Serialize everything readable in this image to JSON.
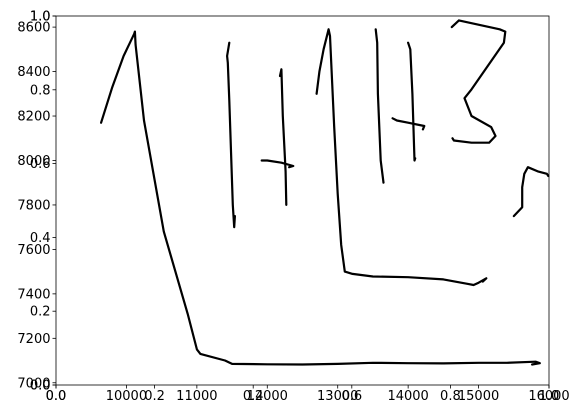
{
  "chart_data": [
    {
      "type": "line",
      "title": "",
      "xlabel": "",
      "ylabel": "",
      "xlim": [
        9000,
        16000
      ],
      "ylim": [
        6990,
        8650
      ],
      "xticks": [
        {
          "value": 10000,
          "label": "10000"
        },
        {
          "value": 11000,
          "label": "11000"
        },
        {
          "value": 12000,
          "label": "12000"
        },
        {
          "value": 13000,
          "label": "13000"
        },
        {
          "value": 14000,
          "label": "14000"
        },
        {
          "value": 15000,
          "label": "15000"
        },
        {
          "value": 16000,
          "label": "16000"
        }
      ],
      "yticks": [
        {
          "value": 7000,
          "label": "7000"
        },
        {
          "value": 7200,
          "label": "7200"
        },
        {
          "value": 7400,
          "label": "7400"
        },
        {
          "value": 7600,
          "label": "7600"
        },
        {
          "value": 7800,
          "label": "7800"
        },
        {
          "value": 8000,
          "label": "8000"
        },
        {
          "value": 8200,
          "label": "8200"
        },
        {
          "value": 8400,
          "label": "8400"
        },
        {
          "value": 8600,
          "label": "8600"
        }
      ],
      "grid": false,
      "line_color": "#000000",
      "series": [
        {
          "points": [
            [
              9640,
              8170
            ],
            [
              9800,
              8330
            ],
            [
              9960,
              8470
            ],
            [
              10110,
              8570
            ],
            [
              10120,
              8580
            ],
            [
              10130,
              8520
            ],
            [
              10250,
              8180
            ],
            [
              10530,
              7680
            ],
            [
              10870,
              7310
            ],
            [
              11000,
              7150
            ],
            [
              11050,
              7130
            ],
            [
              11400,
              7100
            ],
            [
              11500,
              7085
            ],
            [
              12000,
              7083
            ],
            [
              12500,
              7082
            ],
            [
              13000,
              7085
            ],
            [
              13500,
              7090
            ],
            [
              14000,
              7088
            ],
            [
              14500,
              7087
            ],
            [
              15000,
              7090
            ],
            [
              15400,
              7090
            ],
            [
              15810,
              7095
            ],
            [
              15870,
              7088
            ],
            [
              15760,
              7082
            ]
          ]
        },
        {
          "points": [
            [
              11460,
              8530
            ],
            [
              11430,
              8470
            ],
            [
              11440,
              8440
            ],
            [
              11460,
              8270
            ],
            [
              11510,
              7800
            ],
            [
              11530,
              7700
            ],
            [
              11540,
              7750
            ]
          ]
        },
        {
          "points": [
            [
              12180,
              8380
            ],
            [
              12200,
              8410
            ],
            [
              12220,
              8200
            ],
            [
              12260,
              7950
            ],
            [
              12270,
              7800
            ]
          ]
        },
        {
          "points": [
            [
              11920,
              8000
            ],
            [
              12000,
              8000
            ],
            [
              12200,
              7990
            ],
            [
              12370,
              7975
            ],
            [
              12310,
              7970
            ]
          ]
        },
        {
          "points": [
            [
              12700,
              8300
            ],
            [
              12740,
              8400
            ],
            [
              12800,
              8500
            ],
            [
              12870,
              8590
            ],
            [
              12890,
              8560
            ],
            [
              12950,
              8150
            ],
            [
              13000,
              7850
            ],
            [
              13050,
              7620
            ],
            [
              13100,
              7500
            ],
            [
              13210,
              7490
            ],
            [
              13500,
              7478
            ],
            [
              14000,
              7475
            ],
            [
              14500,
              7465
            ],
            [
              14850,
              7445
            ],
            [
              14930,
              7440
            ],
            [
              15000,
              7450
            ],
            [
              15110,
              7470
            ],
            [
              15060,
              7455
            ]
          ]
        },
        {
          "points": [
            [
              13540,
              8590
            ],
            [
              13560,
              8530
            ],
            [
              13570,
              8300
            ],
            [
              13610,
              8000
            ],
            [
              13650,
              7900
            ]
          ]
        },
        {
          "points": [
            [
              14000,
              8530
            ],
            [
              14030,
              8500
            ],
            [
              14060,
              8300
            ],
            [
              14090,
              8000
            ],
            [
              14100,
              8010
            ]
          ]
        },
        {
          "points": [
            [
              13780,
              8190
            ],
            [
              13840,
              8180
            ],
            [
              14000,
              8170
            ],
            [
              14230,
              8155
            ],
            [
              14210,
              8140
            ]
          ]
        },
        {
          "points": [
            [
              14620,
              8600
            ],
            [
              14720,
              8630
            ],
            [
              15300,
              8590
            ],
            [
              15380,
              8580
            ],
            [
              15360,
              8530
            ],
            [
              14900,
              8320
            ],
            [
              14800,
              8280
            ],
            [
              14900,
              8200
            ],
            [
              15180,
              8150
            ],
            [
              15240,
              8110
            ],
            [
              15150,
              8080
            ],
            [
              14900,
              8080
            ],
            [
              14650,
              8090
            ],
            [
              14630,
              8100
            ]
          ]
        },
        {
          "points": [
            [
              15500,
              7750
            ],
            [
              15620,
              7790
            ],
            [
              15620,
              7880
            ],
            [
              15650,
              7940
            ],
            [
              15700,
              7970
            ],
            [
              15850,
              7950
            ],
            [
              15970,
              7940
            ],
            [
              15990,
              7930
            ]
          ]
        }
      ]
    },
    {
      "type": "line",
      "xlim": [
        0,
        1
      ],
      "ylim": [
        0,
        1
      ],
      "xticks": [
        {
          "value": 0.0,
          "label": "0.0"
        },
        {
          "value": 0.2,
          "label": "0.2"
        },
        {
          "value": 0.4,
          "label": "0.4"
        },
        {
          "value": 0.6,
          "label": "0.6"
        },
        {
          "value": 0.8,
          "label": "0.8"
        },
        {
          "value": 1.0,
          "label": "1.0"
        }
      ],
      "yticks": [
        {
          "value": 0.0,
          "label": "0.0"
        },
        {
          "value": 0.2,
          "label": "0.2"
        },
        {
          "value": 0.4,
          "label": "0.4"
        },
        {
          "value": 0.6,
          "label": "0.6"
        },
        {
          "value": 0.8,
          "label": "0.8"
        },
        {
          "value": 1.0,
          "label": "1.0"
        }
      ],
      "series": []
    },
    {
      "type": "line",
      "xlim": [
        0,
        1
      ],
      "ylim": [
        0,
        1
      ],
      "xticks": [
        {
          "value": 0.0,
          "label": "0.0"
        },
        {
          "value": 1.0,
          "label": "1.0"
        }
      ],
      "yticks": [
        {
          "value": 0.0,
          "label": "0.0"
        },
        {
          "value": 1.0,
          "label": "1.0"
        }
      ],
      "series": []
    }
  ]
}
